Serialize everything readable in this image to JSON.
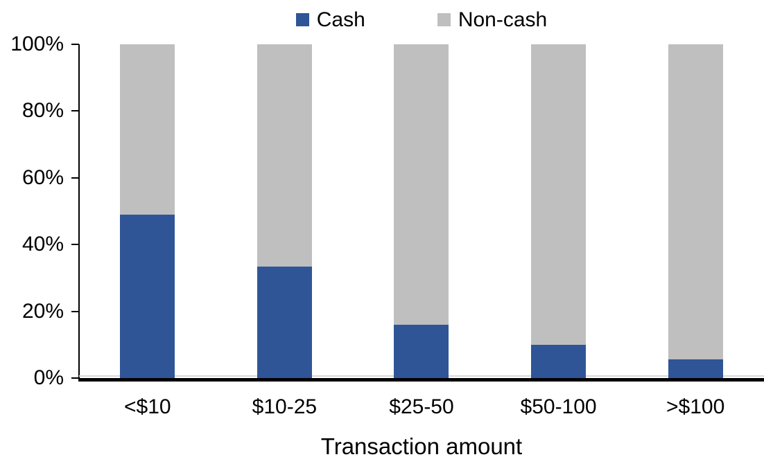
{
  "chart_data": {
    "type": "bar",
    "stacked": true,
    "percent": true,
    "title": "",
    "xlabel": "Transaction amount",
    "ylabel": "",
    "categories": [
      "<$10",
      "$10-25",
      "$25-50",
      "$50-100",
      ">$100"
    ],
    "series": [
      {
        "name": "Cash",
        "color": "#2F5597",
        "values": [
          49,
          33.5,
          16,
          10,
          5.5
        ]
      },
      {
        "name": "Non-cash",
        "color": "#BFBFBF",
        "values": [
          51,
          66.5,
          84,
          90,
          94.5
        ]
      }
    ],
    "ylim": [
      0,
      100
    ],
    "yticks": [
      0,
      20,
      40,
      60,
      80,
      100
    ],
    "ytick_labels": [
      "0%",
      "20%",
      "40%",
      "60%",
      "80%",
      "100%"
    ],
    "grid": false,
    "legend_position": "top-center",
    "axis_color": "#000000",
    "zero_gridline_color": "#D9D9D9"
  }
}
